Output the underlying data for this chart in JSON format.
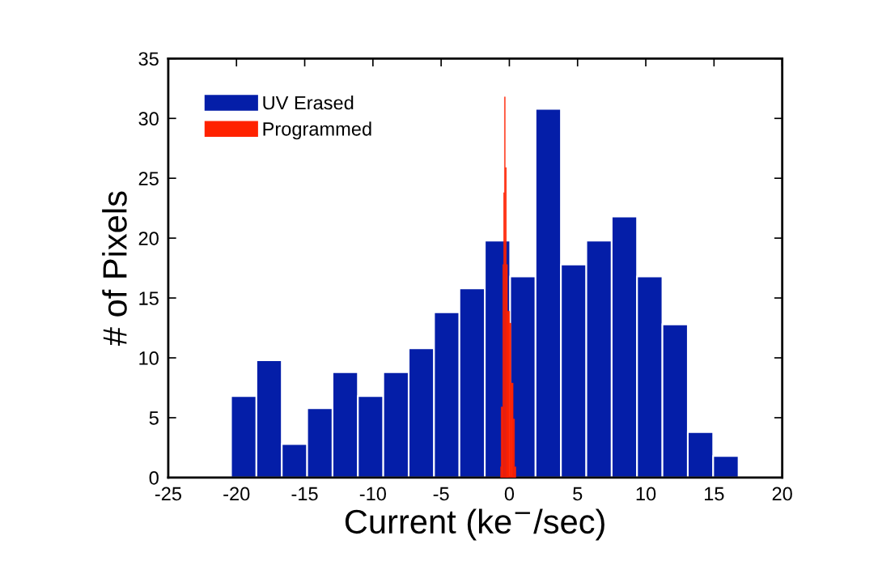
{
  "chart_data": {
    "type": "histogram",
    "xlabel": "Current (ke$^{−}$/sec)",
    "ylabel": "# of Pixels",
    "xlim": [
      -25,
      20
    ],
    "xticks": [
      -25,
      -20,
      -15,
      -10,
      -5,
      0,
      5,
      10,
      15,
      20
    ],
    "ylim": [
      0,
      35
    ],
    "yticks": [
      0,
      5,
      10,
      15,
      20,
      25,
      30,
      35
    ],
    "legend": "top left",
    "grid": false,
    "bins": [
      -20.4,
      -18.54,
      -16.68,
      -14.82,
      -12.96,
      -11.1,
      -9.24,
      -7.38,
      -5.52,
      -3.66,
      -1.8,
      0.06,
      1.92,
      3.78,
      5.64,
      7.5,
      9.36,
      11.22,
      13.08,
      14.94,
      16.8
    ],
    "series": [
      {
        "name": "UV Erased",
        "color": "#041ea8",
        "values": [
          6.8,
          9.8,
          2.8,
          5.8,
          8.8,
          6.8,
          8.8,
          10.8,
          13.8,
          15.8,
          19.8,
          16.8,
          30.8,
          17.8,
          19.8,
          21.8,
          16.8,
          12.8,
          3.8,
          1.8
        ]
      },
      {
        "name": "Programmed",
        "color": "#ff2200",
        "type": "histogram",
        "bins": [
          -0.64,
          -0.6,
          -0.48,
          -0.42,
          -0.36,
          -0.3,
          -0.22,
          -0.14,
          0.02,
          0.12,
          0.28,
          0.38,
          0.48
        ],
        "values": [
          0.9,
          5.9,
          17.8,
          23.8,
          31.8,
          25.9,
          17.8,
          13.9,
          12.9,
          7.9,
          4.9,
          0.9
        ]
      }
    ]
  }
}
